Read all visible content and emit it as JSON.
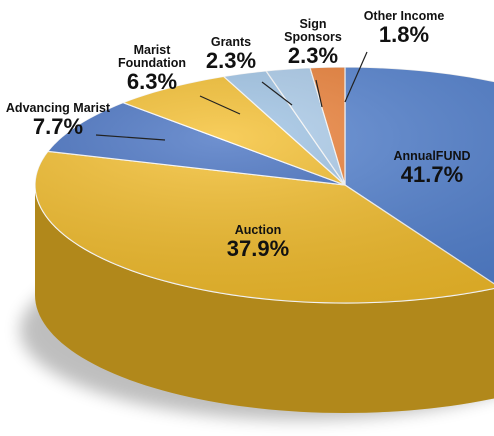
{
  "chart_data": {
    "type": "pie",
    "categories": [
      "AnnualFUND",
      "Auction",
      "Advancing Marist",
      "Marist Foundation",
      "Grants",
      "Sign Sponsors",
      "Other Income"
    ],
    "values": [
      41.7,
      37.9,
      7.7,
      6.3,
      2.3,
      2.3,
      1.8
    ],
    "value_labels": [
      "41.7%",
      "37.9%",
      "7.7%",
      "6.3%",
      "2.3%",
      "2.3%",
      "1.8%"
    ],
    "colors": [
      "#4f7fd0",
      "#f5bd26",
      "#3f6cc0",
      "#f5bd26",
      "#9dc3e6",
      "#a9cbeb",
      "#ed7d31"
    ]
  }
}
